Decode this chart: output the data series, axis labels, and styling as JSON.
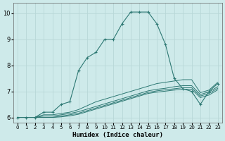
{
  "xlabel": "Humidex (Indice chaleur)",
  "bg_color": "#ceeaea",
  "line_color": "#2d7873",
  "grid_color": "#b8d8d8",
  "xlim": [
    -0.5,
    23.5
  ],
  "ylim": [
    5.8,
    10.4
  ],
  "xticks": [
    0,
    1,
    2,
    3,
    4,
    5,
    6,
    7,
    8,
    9,
    10,
    11,
    12,
    13,
    14,
    15,
    16,
    17,
    18,
    19,
    20,
    21,
    22,
    23
  ],
  "yticks": [
    6,
    7,
    8,
    9,
    10
  ],
  "series": [
    {
      "x": [
        0,
        1,
        2,
        3,
        4,
        5,
        6,
        7,
        8,
        9,
        10,
        11,
        12,
        13,
        14,
        15,
        16,
        17,
        18,
        19,
        20,
        21,
        22,
        23
      ],
      "y": [
        6.0,
        6.0,
        6.0,
        6.2,
        6.2,
        6.5,
        6.6,
        7.8,
        8.3,
        8.5,
        9.0,
        9.0,
        9.6,
        10.05,
        10.05,
        10.05,
        9.6,
        8.8,
        7.5,
        7.1,
        7.0,
        6.5,
        7.0,
        7.3
      ],
      "marker": true
    },
    {
      "x": [
        0,
        1,
        2,
        3,
        4,
        5,
        6,
        7,
        8,
        9,
        10,
        11,
        12,
        13,
        14,
        15,
        16,
        17,
        18,
        19,
        20,
        21,
        22,
        23
      ],
      "y": [
        6.0,
        6.0,
        6.0,
        6.1,
        6.1,
        6.15,
        6.2,
        6.3,
        6.45,
        6.6,
        6.7,
        6.8,
        6.9,
        7.0,
        7.1,
        7.2,
        7.3,
        7.35,
        7.4,
        7.45,
        7.45,
        6.95,
        7.05,
        7.35
      ],
      "marker": false
    },
    {
      "x": [
        0,
        1,
        2,
        3,
        4,
        5,
        6,
        7,
        8,
        9,
        10,
        11,
        12,
        13,
        14,
        15,
        16,
        17,
        18,
        19,
        20,
        21,
        22,
        23
      ],
      "y": [
        6.0,
        6.0,
        6.0,
        6.05,
        6.05,
        6.1,
        6.15,
        6.22,
        6.32,
        6.42,
        6.52,
        6.62,
        6.72,
        6.82,
        6.92,
        7.02,
        7.08,
        7.12,
        7.18,
        7.22,
        7.22,
        6.88,
        6.98,
        7.18
      ],
      "marker": false
    },
    {
      "x": [
        0,
        1,
        2,
        3,
        4,
        5,
        6,
        7,
        8,
        9,
        10,
        11,
        12,
        13,
        14,
        15,
        16,
        17,
        18,
        19,
        20,
        21,
        22,
        23
      ],
      "y": [
        6.0,
        6.0,
        6.0,
        6.0,
        6.0,
        6.05,
        6.1,
        6.16,
        6.26,
        6.36,
        6.46,
        6.56,
        6.66,
        6.76,
        6.86,
        6.96,
        7.02,
        7.06,
        7.1,
        7.14,
        7.14,
        6.82,
        6.92,
        7.12
      ],
      "marker": false
    },
    {
      "x": [
        0,
        1,
        2,
        3,
        4,
        5,
        6,
        7,
        8,
        9,
        10,
        11,
        12,
        13,
        14,
        15,
        16,
        17,
        18,
        19,
        20,
        21,
        22,
        23
      ],
      "y": [
        6.0,
        6.0,
        6.0,
        6.0,
        6.0,
        6.02,
        6.06,
        6.12,
        6.22,
        6.32,
        6.42,
        6.52,
        6.62,
        6.72,
        6.82,
        6.92,
        6.97,
        7.01,
        7.05,
        7.08,
        7.08,
        6.76,
        6.86,
        7.06
      ],
      "marker": false
    }
  ]
}
